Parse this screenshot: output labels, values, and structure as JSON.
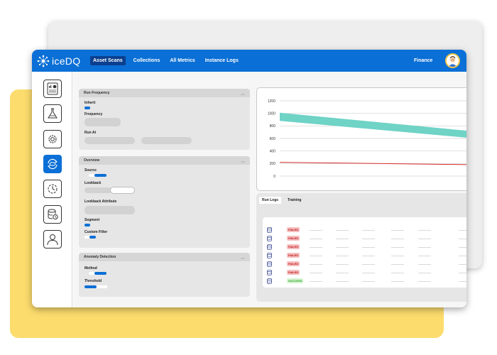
{
  "app": {
    "logo_text": "iceDQ"
  },
  "nav": {
    "items": [
      {
        "label": "Asset Scans",
        "active": true
      },
      {
        "label": "Collections",
        "active": false
      },
      {
        "label": "All Metrics",
        "active": false
      },
      {
        "label": "Instance Logs",
        "active": false
      }
    ]
  },
  "user": {
    "label": "Finance"
  },
  "sidebar": {
    "items": [
      {
        "icon": "dashboard-icon",
        "active": false
      },
      {
        "icon": "flask-icon",
        "active": false
      },
      {
        "icon": "settings-icon",
        "active": false
      },
      {
        "icon": "scan-icon",
        "active": true
      },
      {
        "icon": "schedule-icon",
        "active": false
      },
      {
        "icon": "database-icon",
        "active": false
      },
      {
        "icon": "user-icon",
        "active": false
      }
    ]
  },
  "panels": {
    "run_frequency": {
      "title": "Run Frequency",
      "inherit_label": "Inherit",
      "inherit_on": true,
      "frequency_label": "Frequency",
      "run_at_label": "Run At"
    },
    "overview": {
      "title": "Overview",
      "source_label": "Source",
      "lookback_label": "Lookback",
      "lookback_attribute_label": "Lookback Attribute",
      "segment_label": "Segment",
      "segment_on": true,
      "custom_filter_label": "Custom Filter",
      "custom_filter_on": true
    },
    "anomaly_detection": {
      "title": "Anomaly Detection",
      "method_label": "Method",
      "threshold_label": "Threshold"
    }
  },
  "chart_data": {
    "type": "area",
    "yticks": [
      0,
      200,
      400,
      600,
      800,
      1000,
      1200
    ],
    "ylim": [
      0,
      1200
    ],
    "xlabel": "",
    "ylabel": "",
    "grid": true,
    "band": {
      "lower_start": 880,
      "lower_end": 590,
      "upper_start": 1010,
      "upper_end": 700
    },
    "line": {
      "start": 220,
      "end": 180
    },
    "colors": {
      "band": "#6fd3c6",
      "line": "#d62c2c"
    }
  },
  "logs": {
    "tabs": [
      {
        "label": "Run Logs",
        "active": true
      },
      {
        "label": "Training",
        "active": false
      }
    ],
    "rows": [
      {
        "status": "FAILED"
      },
      {
        "status": "FAILED"
      },
      {
        "status": "FAILED"
      },
      {
        "status": "FAILED"
      },
      {
        "status": "FAILED"
      },
      {
        "status": "FAILED"
      },
      {
        "status": "SUCCESS"
      }
    ]
  }
}
